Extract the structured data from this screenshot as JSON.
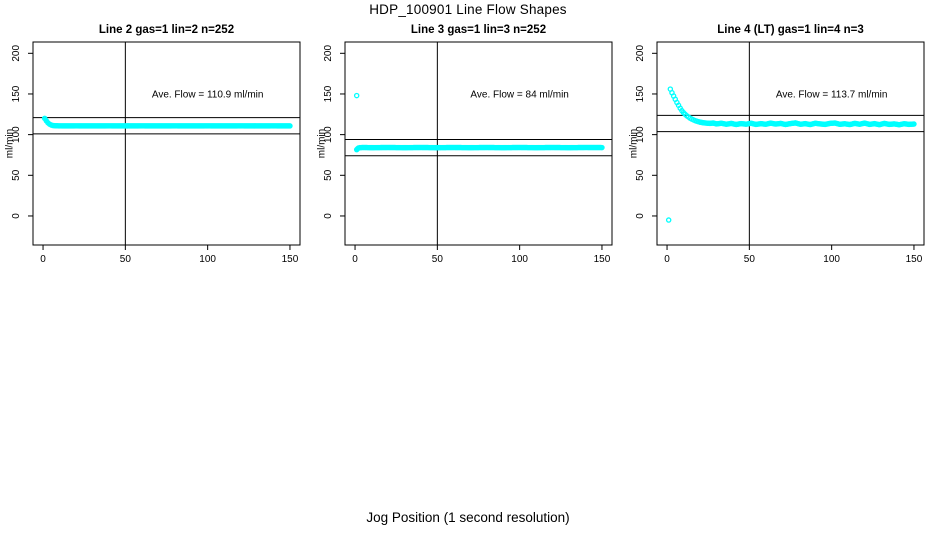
{
  "main_title": "HDP_100901  Line Flow Shapes",
  "xlabel": "Jog Position (1 second resolution)",
  "colors": {
    "point": "#00ffff",
    "axis": "#000000",
    "background": "#ffffff"
  },
  "chart_data": [
    {
      "type": "scatter",
      "title": "Line 2 gas=1 lin=2 n=252",
      "ylabel": "ml/min",
      "ave_flow": 110.9,
      "annotation": {
        "text": "Ave. Flow =  110.9  ml/min",
        "x": 100,
        "y": 150
      },
      "xlim": [
        -6.1,
        156.1
      ],
      "ylim": [
        -35.7,
        213.9
      ],
      "xticks": [
        0,
        50,
        100,
        150
      ],
      "yticks": [
        0,
        50,
        100,
        150,
        200
      ],
      "vlines": [
        50
      ],
      "hlines": [
        120.9,
        100.9
      ],
      "grid": false,
      "series": [
        {
          "name": "flow",
          "band": true,
          "dot_spacing": 0.7,
          "points": [
            [
              1,
              120
            ],
            [
              2,
              117
            ],
            [
              3,
              114.5
            ],
            [
              4,
              112.8
            ],
            [
              5,
              111.8
            ],
            [
              6,
              111.2
            ],
            [
              8,
              110.9
            ],
            [
              10,
              110.8
            ],
            [
              15,
              110.7
            ],
            [
              20,
              110.8
            ],
            [
              30,
              110.7
            ],
            [
              40,
              110.8
            ],
            [
              50,
              110.7
            ],
            [
              60,
              110.8
            ],
            [
              70,
              110.7
            ],
            [
              80,
              110.8
            ],
            [
              90,
              110.7
            ],
            [
              100,
              110.8
            ],
            [
              110,
              110.7
            ],
            [
              120,
              110.8
            ],
            [
              130,
              110.7
            ],
            [
              140,
              110.8
            ],
            [
              150,
              110.7
            ]
          ]
        }
      ]
    },
    {
      "type": "scatter",
      "title": "Line 3 gas=1 lin=3 n=252",
      "ylabel": "ml/min",
      "ave_flow": 84,
      "annotation": {
        "text": "Ave. Flow =  84  ml/min",
        "x": 100,
        "y": 150
      },
      "xlim": [
        -6.1,
        156.1
      ],
      "ylim": [
        -35.7,
        213.9
      ],
      "xticks": [
        0,
        50,
        100,
        150
      ],
      "yticks": [
        0,
        50,
        100,
        150,
        200
      ],
      "vlines": [
        50
      ],
      "hlines": [
        94,
        74
      ],
      "grid": false,
      "series": [
        {
          "name": "outlier",
          "band": false,
          "points": [
            [
              1,
              148
            ]
          ]
        },
        {
          "name": "flow",
          "band": true,
          "dot_spacing": 0.7,
          "points": [
            [
              1,
              81.5
            ],
            [
              1.5,
              82.5
            ],
            [
              2,
              83.5
            ],
            [
              3,
              84
            ],
            [
              5,
              84.2
            ],
            [
              10,
              84
            ],
            [
              20,
              84.2
            ],
            [
              30,
              84
            ],
            [
              40,
              84.2
            ],
            [
              50,
              84
            ],
            [
              60,
              84.2
            ],
            [
              70,
              84
            ],
            [
              80,
              84.2
            ],
            [
              90,
              84
            ],
            [
              100,
              84.2
            ],
            [
              110,
              84
            ],
            [
              120,
              84.2
            ],
            [
              130,
              84
            ],
            [
              140,
              84.2
            ],
            [
              150,
              84.1
            ]
          ]
        }
      ]
    },
    {
      "type": "scatter",
      "title": "Line 4 (LT) gas=1 lin=4 n=3",
      "ylabel": "ml/min",
      "ave_flow": 113.7,
      "annotation": {
        "text": "Ave. Flow =  113.7  ml/min",
        "x": 100,
        "y": 150
      },
      "xlim": [
        -6.1,
        156.1
      ],
      "ylim": [
        -35.7,
        213.9
      ],
      "xticks": [
        0,
        50,
        100,
        150
      ],
      "yticks": [
        0,
        50,
        100,
        150,
        200
      ],
      "vlines": [
        50
      ],
      "hlines": [
        123.7,
        103.7
      ],
      "grid": false,
      "series": [
        {
          "name": "outlier",
          "band": false,
          "points": [
            [
              1,
              -5
            ]
          ]
        },
        {
          "name": "decay",
          "band": false,
          "dot_spacing": 1.2,
          "points": [
            [
              2,
              156
            ],
            [
              3,
              151.5
            ],
            [
              4,
              147.5
            ],
            [
              5,
              143.5
            ],
            [
              6,
              139.5
            ],
            [
              7,
              136
            ],
            [
              8,
              132.5
            ],
            [
              9,
              129.5
            ],
            [
              10,
              127
            ],
            [
              11,
              125
            ],
            [
              12,
              123.2
            ],
            [
              13,
              121.7
            ],
            [
              14,
              120.3
            ],
            [
              15,
              119.2
            ],
            [
              16,
              118.2
            ],
            [
              17,
              117.3
            ],
            [
              18,
              116.6
            ],
            [
              19,
              116
            ],
            [
              20,
              115.4
            ]
          ]
        },
        {
          "name": "flow",
          "band": true,
          "dot_spacing": 0.8,
          "points": [
            [
              20,
              115.4
            ],
            [
              22,
              114.6
            ],
            [
              24,
              114.2
            ],
            [
              26,
              113.8
            ],
            [
              28,
              114.3
            ],
            [
              30,
              113.2
            ],
            [
              33,
              114
            ],
            [
              36,
              112.8
            ],
            [
              39,
              113.8
            ],
            [
              42,
              112.5
            ],
            [
              45,
              113.6
            ],
            [
              48,
              112.8
            ],
            [
              51,
              114
            ],
            [
              54,
              112.6
            ],
            [
              57,
              113.5
            ],
            [
              60,
              112.8
            ],
            [
              63,
              114.2
            ],
            [
              66,
              113
            ],
            [
              69,
              113.8
            ],
            [
              72,
              112.5
            ],
            [
              75,
              113.6
            ],
            [
              78,
              114.4
            ],
            [
              81,
              112.8
            ],
            [
              84,
              113.5
            ],
            [
              87,
              112.4
            ],
            [
              90,
              114
            ],
            [
              93,
              113.2
            ],
            [
              96,
              112.6
            ],
            [
              99,
              113.8
            ],
            [
              102,
              114.3
            ],
            [
              105,
              112.7
            ],
            [
              108,
              113.4
            ],
            [
              111,
              112.4
            ],
            [
              114,
              113.9
            ],
            [
              117,
              112.8
            ],
            [
              120,
              114.2
            ],
            [
              123,
              112.6
            ],
            [
              126,
              113.5
            ],
            [
              129,
              112.3
            ],
            [
              132,
              113.8
            ],
            [
              135,
              112.6
            ],
            [
              138,
              113.2
            ],
            [
              141,
              112.2
            ],
            [
              144,
              113.4
            ],
            [
              147,
              112.6
            ],
            [
              150,
              113
            ]
          ]
        }
      ]
    }
  ]
}
